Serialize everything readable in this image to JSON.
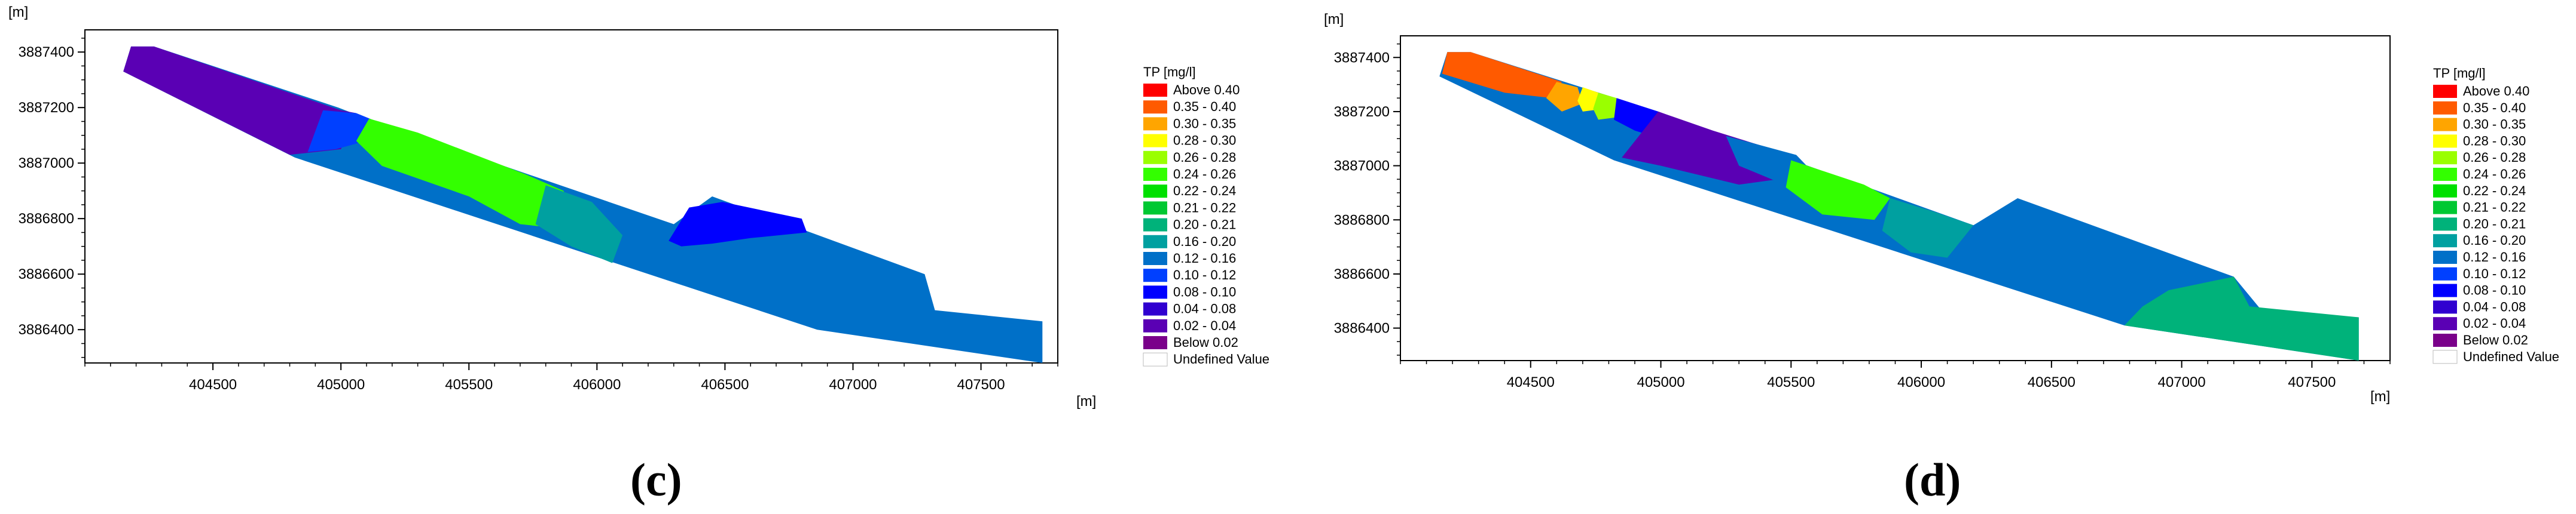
{
  "chart_data": [
    {
      "type": "heatmap",
      "panel_label": "(c)",
      "xlabel": "[m]",
      "ylabel": "[m]",
      "xlim": [
        404000,
        407800
      ],
      "ylim": [
        3886280,
        3887480
      ],
      "x_ticks": [
        "404500",
        "405000",
        "405500",
        "406000",
        "406500",
        "407000",
        "407500"
      ],
      "x_tick_values": [
        404500,
        405000,
        405500,
        406000,
        406500,
        407000,
        407500
      ],
      "y_ticks": [
        "3887400",
        "3887200",
        "3887000",
        "3886800",
        "3886600",
        "3886400"
      ],
      "y_tick_values": [
        3887400,
        3887200,
        3887000,
        3886800,
        3886600,
        3886400
      ],
      "legend_title": "TP [mg/l]",
      "legend": [
        {
          "label": "Above 0.40",
          "color": "#ff0000"
        },
        {
          "label": "0.35 - 0.40",
          "color": "#ff5a00"
        },
        {
          "label": "0.30 - 0.35",
          "color": "#ffa500"
        },
        {
          "label": "0.28 - 0.30",
          "color": "#ffff00"
        },
        {
          "label": "0.26 - 0.28",
          "color": "#9aff00"
        },
        {
          "label": "0.24 - 0.26",
          "color": "#33ff00"
        },
        {
          "label": "0.22 - 0.24",
          "color": "#00e000"
        },
        {
          "label": "0.21 - 0.22",
          "color": "#00c832"
        },
        {
          "label": "0.20 - 0.21",
          "color": "#00b27a"
        },
        {
          "label": "0.16 - 0.20",
          "color": "#00a0a0"
        },
        {
          "label": "0.12 - 0.16",
          "color": "#0070c8"
        },
        {
          "label": "0.10 - 0.12",
          "color": "#0040ff"
        },
        {
          "label": "0.08 - 0.10",
          "color": "#0000ff"
        },
        {
          "label": "0.04 - 0.08",
          "color": "#3000d0"
        },
        {
          "label": "0.02 - 0.04",
          "color": "#5a00b4"
        },
        {
          "label": "Below 0.02",
          "color": "#7a008a"
        },
        {
          "label": "Undefined Value",
          "color": "#ffffff"
        }
      ],
      "outline": [
        [
          404180,
          3887420
        ],
        [
          404270,
          3887420
        ],
        [
          404990,
          3887200
        ],
        [
          405130,
          3887150
        ],
        [
          406300,
          3886780
        ],
        [
          406450,
          3886880
        ],
        [
          407280,
          3886600
        ],
        [
          407320,
          3886470
        ],
        [
          407740,
          3886430
        ],
        [
          407740,
          3886280
        ],
        [
          406860,
          3886400
        ],
        [
          404820,
          3887020
        ],
        [
          404150,
          3887330
        ]
      ],
      "zones": [
        {
          "range": "0.02 - 0.04",
          "points": [
            [
              404180,
              3887420
            ],
            [
              404270,
              3887420
            ],
            [
              405000,
              3887190
            ],
            [
              405060,
              3887180
            ],
            [
              405000,
              3887050
            ],
            [
              404800,
              3887030
            ],
            [
              404150,
              3887330
            ]
          ]
        },
        {
          "range": "0.10 - 0.12",
          "points": [
            [
              404930,
              3887190
            ],
            [
              405060,
              3887180
            ],
            [
              405140,
              3887150
            ],
            [
              405100,
              3887080
            ],
            [
              404980,
              3887050
            ],
            [
              404870,
              3887040
            ]
          ]
        },
        {
          "range": "0.24 - 0.26",
          "points": [
            [
              405110,
              3887160
            ],
            [
              405300,
              3887110
            ],
            [
              405720,
              3886960
            ],
            [
              405870,
              3886900
            ],
            [
              405900,
              3886760
            ],
            [
              405700,
              3886780
            ],
            [
              405500,
              3886880
            ],
            [
              405160,
              3886990
            ],
            [
              405060,
              3887080
            ]
          ]
        },
        {
          "range": "0.16 - 0.20",
          "points": [
            [
              405800,
              3886920
            ],
            [
              405980,
              3886860
            ],
            [
              406100,
              3886740
            ],
            [
              406060,
              3886640
            ],
            [
              405900,
              3886700
            ],
            [
              405760,
              3886780
            ]
          ]
        },
        {
          "range": "0.08 - 0.10",
          "points": [
            [
              406280,
              3886720
            ],
            [
              406360,
              3886840
            ],
            [
              406490,
              3886860
            ],
            [
              406800,
              3886800
            ],
            [
              406820,
              3886750
            ],
            [
              406600,
              3886730
            ],
            [
              406450,
              3886710
            ],
            [
              406330,
              3886700
            ]
          ]
        }
      ]
    },
    {
      "type": "heatmap",
      "panel_label": "(d)",
      "xlabel": "[m]",
      "ylabel": "[m]",
      "xlim": [
        404000,
        407800
      ],
      "ylim": [
        3886280,
        3887480
      ],
      "x_ticks": [
        "404500",
        "405000",
        "405500",
        "406000",
        "406500",
        "407000",
        "407500"
      ],
      "x_tick_values": [
        404500,
        405000,
        405500,
        406000,
        406500,
        407000,
        407500
      ],
      "y_ticks": [
        "3887400",
        "3887200",
        "3887000",
        "3886800",
        "3886600",
        "3886400"
      ],
      "y_tick_values": [
        3887400,
        3887200,
        3887000,
        3886800,
        3886600,
        3886400
      ],
      "legend_title": "TP [mg/l]",
      "legend": [
        {
          "label": "Above 0.40",
          "color": "#ff0000"
        },
        {
          "label": "0.35 - 0.40",
          "color": "#ff5a00"
        },
        {
          "label": "0.30 - 0.35",
          "color": "#ffa500"
        },
        {
          "label": "0.28 - 0.30",
          "color": "#ffff00"
        },
        {
          "label": "0.26 - 0.28",
          "color": "#9aff00"
        },
        {
          "label": "0.24 - 0.26",
          "color": "#33ff00"
        },
        {
          "label": "0.22 - 0.24",
          "color": "#00e000"
        },
        {
          "label": "0.21 - 0.22",
          "color": "#00c832"
        },
        {
          "label": "0.20 - 0.21",
          "color": "#00b27a"
        },
        {
          "label": "0.16 - 0.20",
          "color": "#00a0a0"
        },
        {
          "label": "0.12 - 0.16",
          "color": "#0070c8"
        },
        {
          "label": "0.10 - 0.12",
          "color": "#0040ff"
        },
        {
          "label": "0.08 - 0.10",
          "color": "#0000ff"
        },
        {
          "label": "0.04 - 0.08",
          "color": "#3000d0"
        },
        {
          "label": "0.02 - 0.04",
          "color": "#5a00b4"
        },
        {
          "label": "Below 0.02",
          "color": "#7a008a"
        },
        {
          "label": "Undefined Value",
          "color": "#ffffff"
        }
      ],
      "outline": [
        [
          404180,
          3887420
        ],
        [
          404270,
          3887420
        ],
        [
          404990,
          3887200
        ],
        [
          405130,
          3887150
        ],
        [
          406200,
          3886780
        ],
        [
          406370,
          3886880
        ],
        [
          407200,
          3886590
        ],
        [
          407320,
          3886450
        ],
        [
          407680,
          3886440
        ],
        [
          407680,
          3886280
        ],
        [
          406780,
          3886410
        ],
        [
          404820,
          3887020
        ],
        [
          404150,
          3887330
        ]
      ],
      "zones": [
        {
          "range": "0.35 - 0.40",
          "points": [
            [
              404180,
              3887420
            ],
            [
              404270,
              3887420
            ],
            [
              404620,
              3887310
            ],
            [
              404580,
              3887250
            ],
            [
              404400,
              3887270
            ],
            [
              404160,
              3887340
            ]
          ]
        },
        {
          "range": "0.30 - 0.35",
          "points": [
            [
              404600,
              3887310
            ],
            [
              404680,
              3887290
            ],
            [
              404700,
              3887230
            ],
            [
              404620,
              3887200
            ],
            [
              404560,
              3887250
            ]
          ]
        },
        {
          "range": "0.28 - 0.30",
          "points": [
            [
              404700,
              3887290
            ],
            [
              404760,
              3887270
            ],
            [
              404780,
              3887210
            ],
            [
              404700,
              3887200
            ],
            [
              404680,
              3887240
            ]
          ]
        },
        {
          "range": "0.26 - 0.28",
          "points": [
            [
              404760,
              3887270
            ],
            [
              404830,
              3887250
            ],
            [
              404840,
              3887180
            ],
            [
              404760,
              3887170
            ],
            [
              404740,
              3887210
            ]
          ]
        },
        {
          "range": "0.08 - 0.10",
          "points": [
            [
              404830,
              3887250
            ],
            [
              404990,
              3887200
            ],
            [
              405100,
              3887160
            ],
            [
              405000,
              3887100
            ],
            [
              404900,
              3887130
            ],
            [
              404820,
              3887170
            ]
          ]
        },
        {
          "range": "0.02 - 0.04",
          "points": [
            [
              404990,
              3887200
            ],
            [
              405200,
              3887130
            ],
            [
              405400,
              3887070
            ],
            [
              405450,
              3886950
            ],
            [
              405300,
              3886930
            ],
            [
              405000,
              3887000
            ],
            [
              404850,
              3887030
            ]
          ]
        },
        {
          "range": "0.12 - 0.16",
          "points": [
            [
              405250,
              3887110
            ],
            [
              405520,
              3887040
            ],
            [
              405600,
              3886960
            ],
            [
              405500,
              3886920
            ],
            [
              405300,
              3887000
            ]
          ]
        },
        {
          "range": "0.24 - 0.26",
          "points": [
            [
              405500,
              3887020
            ],
            [
              405780,
              3886930
            ],
            [
              405880,
              3886880
            ],
            [
              405820,
              3886800
            ],
            [
              405620,
              3886820
            ],
            [
              405480,
              3886920
            ]
          ]
        },
        {
          "range": "0.16 - 0.20",
          "points": [
            [
              405880,
              3886880
            ],
            [
              406050,
              3886830
            ],
            [
              406200,
              3886780
            ],
            [
              406100,
              3886660
            ],
            [
              405960,
              3886680
            ],
            [
              405850,
              3886760
            ]
          ]
        },
        {
          "range": "0.20 - 0.21",
          "points": [
            [
              406950,
              3886540
            ],
            [
              407200,
              3886590
            ],
            [
              407260,
              3886480
            ],
            [
              407680,
              3886440
            ],
            [
              407680,
              3886280
            ],
            [
              406780,
              3886410
            ],
            [
              406850,
              3886480
            ]
          ]
        }
      ]
    }
  ]
}
